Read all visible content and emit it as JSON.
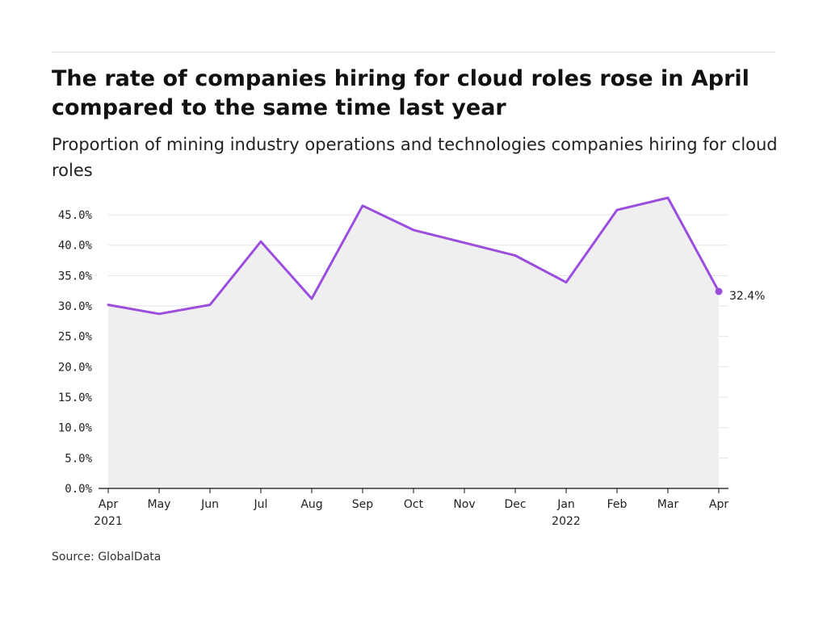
{
  "title": "The rate of companies hiring for cloud roles rose in April compared to the same time last year",
  "subtitle": "Proportion of mining industry operations and technologies companies hiring for cloud roles",
  "source": "Source: GlobalData",
  "colors": {
    "line": "#9b4dde",
    "area": "#efeff0",
    "grid": "#e3e3e3",
    "axis": "#111111"
  },
  "chart_data": {
    "type": "area",
    "x": [
      "Apr 2021",
      "May 2021",
      "Jun 2021",
      "Jul 2021",
      "Aug 2021",
      "Sep 2021",
      "Oct 2021",
      "Nov 2021",
      "Dec 2021",
      "Jan 2022",
      "Feb 2022",
      "Mar 2022",
      "Apr 2022"
    ],
    "x_tick_labels": [
      [
        "Apr",
        "2021"
      ],
      [
        "May"
      ],
      [
        "Jun"
      ],
      [
        "Jul"
      ],
      [
        "Aug"
      ],
      [
        "Sep"
      ],
      [
        "Oct"
      ],
      [
        "Nov"
      ],
      [
        "Dec"
      ],
      [
        "Jan",
        "2022"
      ],
      [
        "Feb"
      ],
      [
        "Mar"
      ],
      [
        "Apr"
      ]
    ],
    "series": [
      {
        "values": [
          30.2,
          28.7,
          30.2,
          40.6,
          31.2,
          46.5,
          42.5,
          40.4,
          38.3,
          33.9,
          45.8,
          47.8,
          32.4
        ]
      }
    ],
    "y_ticks": [
      0,
      5,
      10,
      15,
      20,
      25,
      30,
      35,
      40,
      45
    ],
    "y_tick_labels": [
      "0.0%",
      "5.0%",
      "10.0%",
      "15.0%",
      "20.0%",
      "25.0%",
      "30.0%",
      "35.0%",
      "40.0%",
      "45.0%"
    ],
    "ylim": [
      0,
      47.8
    ],
    "end_label": "32.4%",
    "grid": true,
    "legend": "none"
  }
}
